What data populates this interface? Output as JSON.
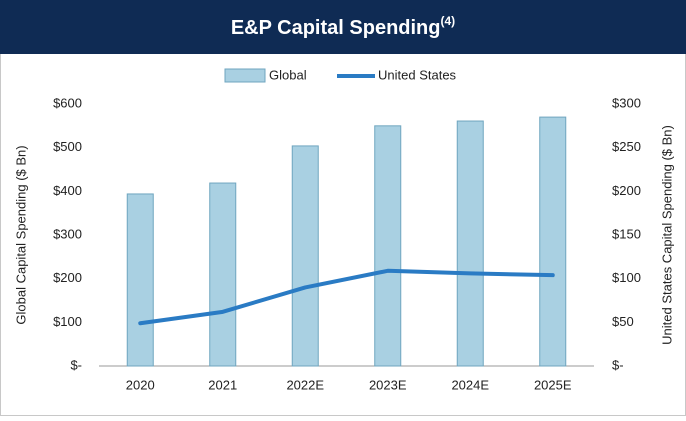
{
  "chart_data": {
    "type": "bar_line",
    "title": "E&P Capital Spending",
    "title_note": "(4)",
    "categories": [
      "2020",
      "2021",
      "2022E",
      "2023E",
      "2024E",
      "2025E"
    ],
    "series": [
      {
        "name": "Global",
        "color": "#a9d0e2",
        "values": [
          394,
          419,
          504,
          550,
          561,
          570
        ]
      },
      {
        "name": "United States",
        "color": "#2a7bc4",
        "axis": "y2",
        "values": [
          49,
          62,
          90,
          109,
          106,
          104
        ]
      }
    ],
    "ylabel": "Global Capital Spending ($ Bn)",
    "y2label": "United States Capital Spending ($ Bn)",
    "ylim": [
      0,
      600
    ],
    "yticks": [
      {
        "value": 0,
        "label": "$-"
      },
      {
        "value": 100,
        "label": "$100"
      },
      {
        "value": 200,
        "label": "$200"
      },
      {
        "value": 300,
        "label": "$300"
      },
      {
        "value": 400,
        "label": "$400"
      },
      {
        "value": 500,
        "label": "$500"
      },
      {
        "value": 600,
        "label": "$600"
      }
    ],
    "y2lim": [
      0,
      300
    ],
    "y2ticks": [
      {
        "value": 0,
        "label": "$-"
      },
      {
        "value": 50,
        "label": "$50"
      },
      {
        "value": 100,
        "label": "$100"
      },
      {
        "value": 150,
        "label": "$150"
      },
      {
        "value": 200,
        "label": "$200"
      },
      {
        "value": 250,
        "label": "$250"
      },
      {
        "value": 300,
        "label": "$300"
      }
    ],
    "legend": "top"
  }
}
